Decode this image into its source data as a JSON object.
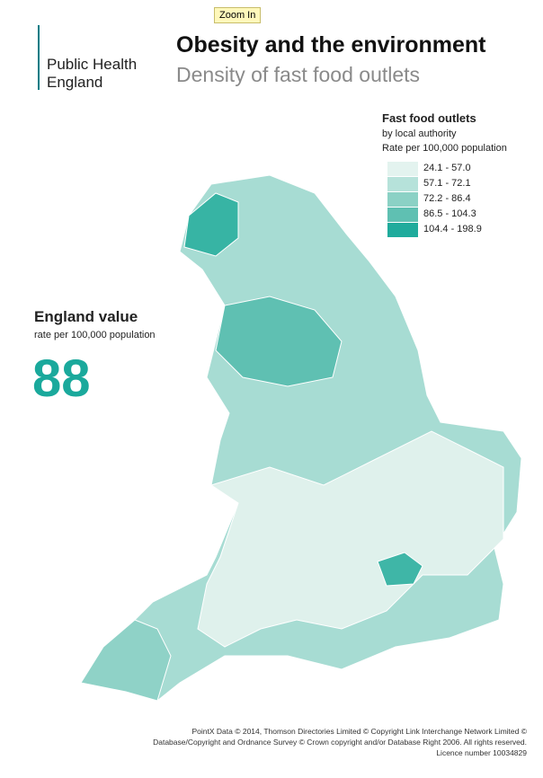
{
  "button": "Zoom In",
  "logo": {
    "lines": [
      "Public Health",
      "England"
    ]
  },
  "header": {
    "title": "Obesity and the environment",
    "subtitle": "Density of fast food outlets"
  },
  "legend": {
    "title": "Fast food outlets",
    "subtitle": "by local authority",
    "note": "Rate per 100,000 population",
    "items": [
      {
        "label": "24.1 - 57.0",
        "color": "#e3f3ef"
      },
      {
        "label": "57.1 - 72.1",
        "color": "#b6e2da"
      },
      {
        "label": "72.2 - 86.4",
        "color": "#8bd1c5"
      },
      {
        "label": "86.5 - 104.3",
        "color": "#5fc0b2"
      },
      {
        "label": "104.4 - 198.9",
        "color": "#1fab9c"
      }
    ]
  },
  "england": {
    "title": "England value",
    "subtitle": "rate per 100,000 population",
    "value": 88
  },
  "footer": [
    "PointX Data © 2014, Thomson Directories Limited © Copyright Link Interchange Network Limited ©",
    "Database/Copyright and Ordnance Survey © Crown copyright and/or Database Right 2006.  All rights reserved.",
    "Licence number 10034829"
  ]
}
